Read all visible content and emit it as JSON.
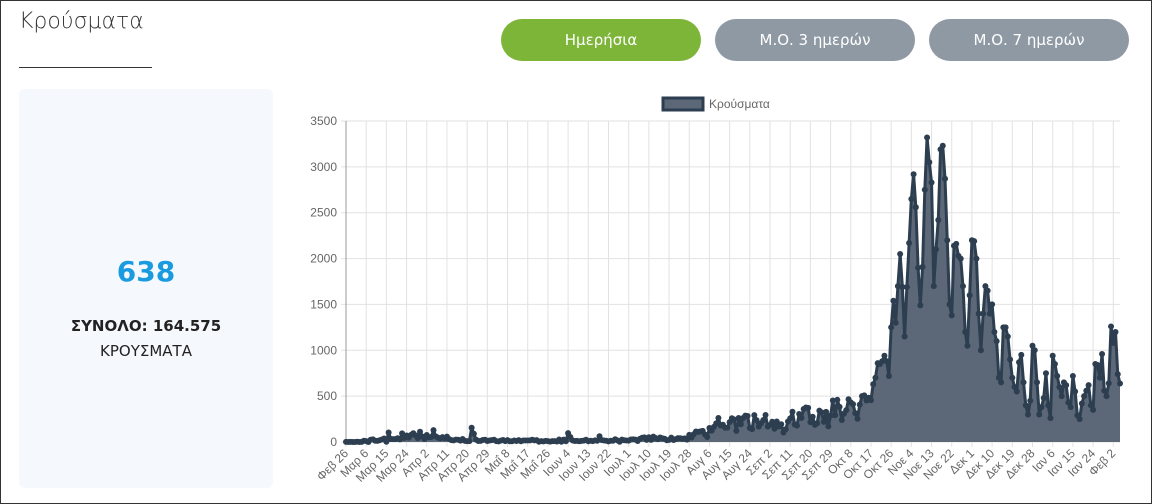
{
  "header": {
    "title": "Κρούσματα"
  },
  "buttons": [
    "Ημερήσια",
    "Μ.Ο. 3 ημερών",
    "Μ.Ο. 7 ημερών"
  ],
  "summary": {
    "value": "638",
    "total": "ΣΥΝΟΛΟ: 164.575",
    "label": "ΚΡΟΥΣΜΑΤΑ"
  },
  "chart_data": {
    "type": "line",
    "fill": true,
    "grid": true,
    "legend": "top",
    "ylim": [
      0,
      3500
    ],
    "yticks": [
      0,
      500,
      1000,
      1500,
      2000,
      2500,
      3000,
      3500
    ],
    "categories": [
      "Φεβ 26",
      null,
      null,
      null,
      null,
      null,
      null,
      null,
      null,
      "Μαρ 6",
      null,
      null,
      null,
      null,
      null,
      null,
      null,
      null,
      "Μαρ 15",
      null,
      null,
      null,
      null,
      null,
      null,
      null,
      null,
      "Μαρ 24",
      null,
      null,
      null,
      null,
      null,
      null,
      null,
      null,
      "Απρ 2",
      null,
      null,
      null,
      null,
      null,
      null,
      null,
      null,
      "Απρ 11",
      null,
      null,
      null,
      null,
      null,
      null,
      null,
      null,
      "Απρ 20",
      null,
      null,
      null,
      null,
      null,
      null,
      null,
      null,
      "Απρ 29",
      null,
      null,
      null,
      null,
      null,
      null,
      null,
      null,
      "Μαΐ 8",
      null,
      null,
      null,
      null,
      null,
      null,
      null,
      null,
      "Μαΐ 17",
      null,
      null,
      null,
      null,
      null,
      null,
      null,
      null,
      "Μαΐ 26",
      null,
      null,
      null,
      null,
      null,
      null,
      null,
      null,
      "Ιουν 4",
      null,
      null,
      null,
      null,
      null,
      null,
      null,
      null,
      "Ιουν 13",
      null,
      null,
      null,
      null,
      null,
      null,
      null,
      null,
      "Ιουν 22",
      null,
      null,
      null,
      null,
      null,
      null,
      null,
      null,
      "Ιουλ 1",
      null,
      null,
      null,
      null,
      null,
      null,
      null,
      null,
      "Ιουλ 10",
      null,
      null,
      null,
      null,
      null,
      null,
      null,
      null,
      "Ιουλ 19",
      null,
      null,
      null,
      null,
      null,
      null,
      null,
      null,
      "Ιουλ 28",
      null,
      null,
      null,
      null,
      null,
      null,
      null,
      null,
      "Αυγ 6",
      null,
      null,
      null,
      null,
      null,
      null,
      null,
      null,
      "Αυγ 15",
      null,
      null,
      null,
      null,
      null,
      null,
      null,
      null,
      "Αυγ 24",
      null,
      null,
      null,
      null,
      null,
      null,
      null,
      null,
      "Σεπ 2",
      null,
      null,
      null,
      null,
      null,
      null,
      null,
      null,
      "Σεπ 11",
      null,
      null,
      null,
      null,
      null,
      null,
      null,
      null,
      "Σεπ 20",
      null,
      null,
      null,
      null,
      null,
      null,
      null,
      null,
      "Σεπ 29",
      null,
      null,
      null,
      null,
      null,
      null,
      null,
      null,
      "Οκτ 8",
      null,
      null,
      null,
      null,
      null,
      null,
      null,
      null,
      "Οκτ 17",
      null,
      null,
      null,
      null,
      null,
      null,
      null,
      null,
      "Οκτ 26",
      null,
      null,
      null,
      null,
      null,
      null,
      null,
      null,
      "Νοε 4",
      null,
      null,
      null,
      null,
      null,
      null,
      null,
      null,
      "Νοε 13",
      null,
      null,
      null,
      null,
      null,
      null,
      null,
      null,
      "Νοε 22",
      null,
      null,
      null,
      null,
      null,
      null,
      null,
      null,
      "Δεκ 1",
      null,
      null,
      null,
      null,
      null,
      null,
      null,
      null,
      "Δεκ 10",
      null,
      null,
      null,
      null,
      null,
      null,
      null,
      null,
      "Δεκ 19",
      null,
      null,
      null,
      null,
      null,
      null,
      null,
      null,
      "Δεκ 28",
      null,
      null,
      null,
      null,
      null,
      null,
      null,
      null,
      "Ιαν 6",
      null,
      null,
      null,
      null,
      null,
      null,
      null,
      null,
      "Ιαν 15",
      null,
      null,
      null,
      null,
      null,
      null,
      null,
      null,
      "Ιαν 24",
      null,
      null,
      null,
      null,
      null,
      null,
      null,
      null,
      "Φεβ 2",
      null,
      null,
      null
    ],
    "series": [
      {
        "name": "Κρούσματα",
        "color": "#2c3e50",
        "fill_color": "#5c6877",
        "values": [
          1,
          0,
          1,
          0,
          0,
          3,
          0,
          2,
          14,
          9,
          0,
          24,
          28,
          13,
          12,
          19,
          27,
          38,
          3,
          103,
          33,
          31,
          31,
          41,
          28,
          94,
          45,
          71,
          48,
          78,
          95,
          72,
          42,
          112,
          60,
          33,
          76,
          52,
          55,
          129,
          62,
          48,
          40,
          53,
          40,
          59,
          32,
          21,
          18,
          26,
          25,
          15,
          33,
          12,
          9,
          9,
          156,
          90,
          24,
          11,
          12,
          22,
          24,
          11,
          16,
          20,
          25,
          10,
          7,
          15,
          22,
          10,
          20,
          8,
          8,
          16,
          11,
          20,
          8,
          17,
          17,
          17,
          18,
          25,
          18,
          21,
          3,
          10,
          7,
          12,
          10,
          4,
          9,
          10,
          5,
          27,
          3,
          26,
          8,
          97,
          55,
          17,
          11,
          12,
          8,
          12,
          15,
          24,
          8,
          13,
          10,
          18,
          13,
          63,
          21,
          17,
          13,
          7,
          13,
          14,
          30,
          17,
          3,
          26,
          19,
          17,
          15,
          27,
          29,
          26,
          11,
          34,
          47,
          50,
          23,
          52,
          23,
          58,
          43,
          31,
          49,
          41,
          36,
          19,
          23,
          48,
          22,
          31,
          42,
          41,
          35,
          39,
          26,
          78,
          49,
          84,
          114,
          110,
          116,
          121,
          82,
          54,
          153,
          124,
          165,
          203,
          262,
          180,
          188,
          156,
          157,
          217,
          259,
          246,
          121,
          262,
          193,
          262,
          288,
          284,
          152,
          141,
          293,
          239,
          168,
          203,
          238,
          294,
          169,
          186,
          221,
          144,
          224,
          170,
          194,
          103,
          139,
          224,
          257,
          330,
          191,
          178,
          305,
          263,
          360,
          376,
          372,
          216,
          275,
          187,
          205,
          342,
          323,
          220,
          328,
          170,
          289,
          453,
          292,
          460,
          383,
          240,
          311,
          347,
          466,
          432,
          413,
          315,
          253,
          408,
          500,
          508,
          452,
          482,
          457,
          630,
          700,
          860,
          850,
          880,
          940,
          880,
          720,
          1250,
          1540,
          1300,
          1700,
          2050,
          1690,
          1150,
          1690,
          2170,
          2650,
          2920,
          2560,
          1900,
          1490,
          1910,
          2750,
          3320,
          3050,
          2830,
          1700,
          2100,
          2420,
          3190,
          3230,
          2870,
          2200,
          1500,
          1380,
          2140,
          2160,
          2030,
          2000,
          1700,
          1200,
          1050,
          1600,
          2200,
          2190,
          2000,
          1400,
          1000,
          1400,
          1700,
          1650,
          1400,
          1500,
          1200,
          1100,
          700,
          650,
          1250,
          1250,
          1150,
          900,
          700,
          600,
          550,
          870,
          950,
          650,
          400,
          300,
          450,
          1050,
          1000,
          650,
          300,
          380,
          480,
          750,
          400,
          260,
          940,
          850,
          720,
          600,
          500,
          650,
          620,
          430,
          380,
          720,
          550,
          290,
          250,
          420,
          500,
          560,
          620,
          400,
          350,
          850,
          840,
          700,
          960,
          560,
          500,
          640,
          1260,
          1080,
          1200,
          740,
          638
        ]
      }
    ]
  }
}
